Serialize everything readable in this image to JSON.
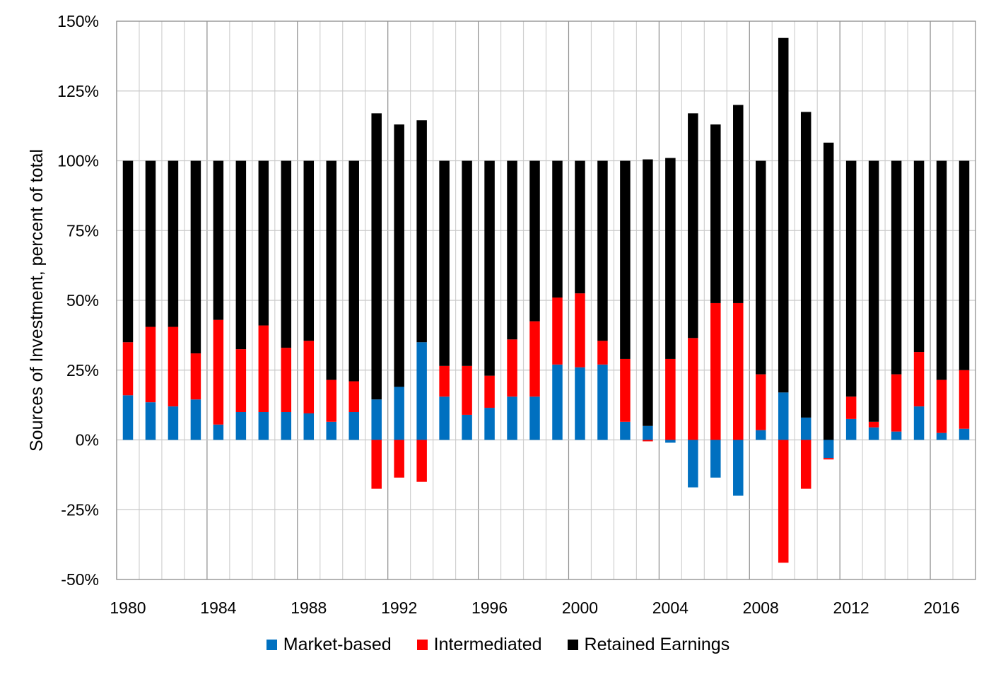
{
  "chart_data": {
    "type": "bar",
    "stacked": true,
    "title": "",
    "xlabel": "",
    "ylabel": "Sources of Investment, percent of total",
    "ylim": [
      -50,
      150
    ],
    "yticks": [
      -50,
      -25,
      0,
      25,
      50,
      75,
      100,
      125,
      150
    ],
    "ytick_labels": [
      "-50%",
      "-25%",
      "0%",
      "25%",
      "50%",
      "75%",
      "100%",
      "125%",
      "150%"
    ],
    "xtick_labels": [
      "1980",
      "1984",
      "1988",
      "1992",
      "1996",
      "2000",
      "2004",
      "2008",
      "2012",
      "2016"
    ],
    "grid": true,
    "legend_position": "bottom",
    "categories": [
      "1980",
      "1981",
      "1982",
      "1983",
      "1984",
      "1985",
      "1986",
      "1987",
      "1988",
      "1989",
      "1990",
      "1991",
      "1992",
      "1993",
      "1994",
      "1995",
      "1996",
      "1997",
      "1998",
      "1999",
      "2000",
      "2001",
      "2002",
      "2003",
      "2004",
      "2005",
      "2006",
      "2007",
      "2008",
      "2009",
      "2010",
      "2011",
      "2012",
      "2013",
      "2014",
      "2015",
      "2016",
      "2017"
    ],
    "series": [
      {
        "name": "Market-based",
        "color": "#0070C0",
        "values": [
          16,
          13.5,
          12,
          14.5,
          5.5,
          10,
          10,
          10,
          9.5,
          6.5,
          10,
          14.5,
          19,
          35,
          15.5,
          9,
          11.5,
          15.5,
          15.5,
          27,
          26,
          27,
          6.5,
          5,
          -1,
          -17,
          -13.5,
          -20,
          3.5,
          17,
          8,
          -6.5,
          7.5,
          4.5,
          3,
          12,
          2.5,
          4
        ]
      },
      {
        "name": "Intermediated",
        "color": "#FF0000",
        "values": [
          19,
          27,
          28.5,
          16.5,
          37.5,
          22.5,
          31,
          23,
          26,
          15,
          11,
          -17.5,
          -13.5,
          -15,
          11,
          17.5,
          11.5,
          20.5,
          27,
          24,
          26.5,
          8.5,
          22.5,
          -0.5,
          29,
          36.5,
          49,
          49,
          20,
          -44,
          -17.5,
          -0.5,
          8,
          2,
          20.5,
          19.5,
          19,
          21
        ]
      },
      {
        "name": "Retained Earnings",
        "color": "#000000",
        "values": [
          65,
          59.5,
          59.5,
          69,
          57,
          67.5,
          59,
          67,
          64.5,
          78.5,
          79,
          102.5,
          94,
          79.5,
          73.5,
          73.5,
          77,
          64,
          57.5,
          49,
          47.5,
          64.5,
          71,
          95.5,
          72,
          80.5,
          64,
          71,
          76.5,
          127,
          109.5,
          106.5,
          84.5,
          93.5,
          76.5,
          68.5,
          78.5,
          75
        ]
      }
    ]
  }
}
